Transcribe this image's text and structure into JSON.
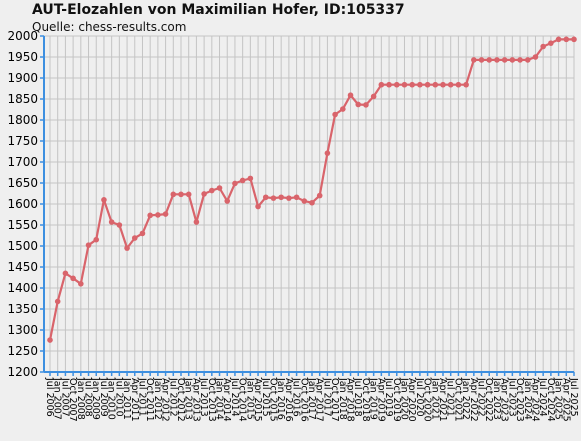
{
  "title": "AUT-Elozahlen von Maximilian Hofer, ID:105337",
  "subtitle": "Quelle: chess-results.com",
  "colors": {
    "line": "#d9646b",
    "marker": "#d9646b",
    "axis": "#3d8fe0",
    "grid": "#c4c4c4",
    "plot_bg": "#efefef"
  },
  "chart_data": {
    "type": "line",
    "ylim": [
      1200,
      2000
    ],
    "yticks": [
      1200,
      1250,
      1300,
      1350,
      1400,
      1450,
      1500,
      1550,
      1600,
      1650,
      1700,
      1750,
      1800,
      1850,
      1900,
      1950,
      2000
    ],
    "grid": true,
    "x": [
      "Jul 2006",
      "Jan 2007",
      "Jul 2007",
      "Oct 2007",
      "Jan 2008",
      "Jul 2008",
      "Jan 2009",
      "Jul 2009",
      "Jan 2010",
      "Jul 2010",
      "Jan 2011",
      "Apr 2011",
      "Jul 2011",
      "Oct 2011",
      "Jan 2012",
      "Apr 2012",
      "Jul 2012",
      "Oct 2012",
      "Jan 2013",
      "Apr 2013",
      "Jul 2013",
      "Oct 2013",
      "Jan 2014",
      "Apr 2014",
      "Jul 2014",
      "Oct 2014",
      "Jan 2015",
      "Apr 2015",
      "Jul 2015",
      "Oct 2015",
      "Jan 2016",
      "Apr 2016",
      "Jul 2016",
      "Oct 2016",
      "Jan 2017",
      "Apr 2017",
      "Jul 2017",
      "Oct 2017",
      "Jan 2018",
      "Apr 2018",
      "Jul 2018",
      "Oct 2018",
      "Jan 2019",
      "Apr 2019",
      "Jul 2019",
      "Oct 2019",
      "Jan 2020",
      "Apr 2020",
      "Jul 2020",
      "Oct 2020",
      "Jan 2021",
      "Apr 2021",
      "Jul 2021",
      "Oct 2021",
      "Jan 2022",
      "Apr 2022",
      "Jul 2022",
      "Oct 2022",
      "Jan 2023",
      "Apr 2023",
      "Jul 2023",
      "Oct 2023",
      "Jan 2024",
      "Apr 2024",
      "Jul 2024",
      "Oct 2024",
      "Jan 2025",
      "Apr 2025",
      "Jul 2025"
    ],
    "series": [
      {
        "values": [
          1276,
          1368,
          1435,
          1423,
          1410,
          1502,
          1515,
          1610,
          1557,
          1550,
          1495,
          1519,
          1530,
          1573,
          1574,
          1576,
          1623,
          1623,
          1623,
          1557,
          1624,
          1632,
          1638,
          1607,
          1649,
          1656,
          1661,
          1594,
          1616,
          1614,
          1616,
          1614,
          1616,
          1607,
          1603,
          1620,
          1721,
          1813,
          1826,
          1859,
          1837,
          1836,
          1856,
          1884,
          1884,
          1884,
          1884,
          1884,
          1884,
          1884,
          1884,
          1884,
          1884,
          1884,
          1884,
          1943,
          1943,
          1943,
          1943,
          1943,
          1943,
          1943,
          1943,
          1950,
          1975,
          1983,
          1992,
          1992,
          1992
        ]
      }
    ]
  }
}
